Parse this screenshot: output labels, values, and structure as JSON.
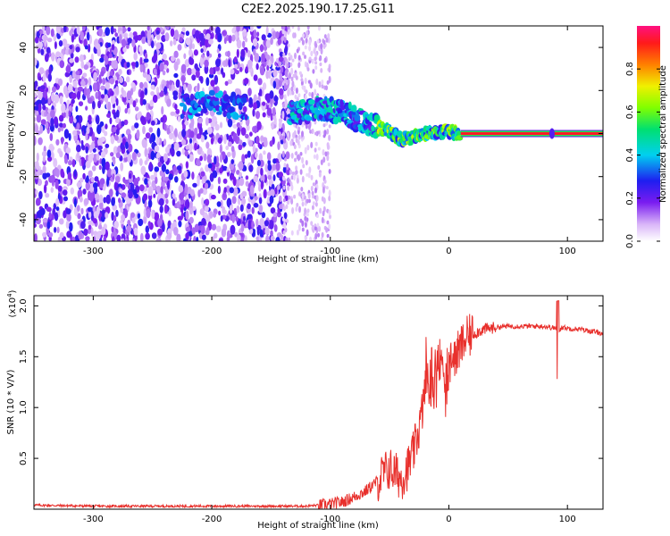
{
  "chart_data": [
    {
      "type": "heatmap",
      "title": "C2E2.2025.190.17.25.G11",
      "xlabel": "Height of straight line (km)",
      "ylabel": "Frequency (Hz)",
      "xlim": [
        -350,
        130
      ],
      "ylim": [
        -50,
        50
      ],
      "xticks": [
        -300,
        -200,
        -100,
        0,
        100
      ],
      "xtick_labels": [
        "-300",
        "-200",
        "-100",
        "0",
        "100"
      ],
      "yticks": [
        -40,
        -20,
        0,
        20,
        40
      ],
      "ytick_labels": [
        "-40",
        "-20",
        "0",
        "20",
        "40"
      ],
      "colorbar": {
        "label": "Normalized spectral amplitude",
        "range": [
          0,
          1
        ],
        "ticks": [
          0.0,
          0.2,
          0.4,
          0.6,
          0.8
        ],
        "tick_labels": [
          "0.0",
          "0.2",
          "0.4",
          "0.6",
          "0.8"
        ]
      },
      "regions": [
        {
          "x": [
            -350,
            -140
          ],
          "description": "noise spread across all frequencies, amplitude ~0.1-0.3"
        },
        {
          "x": [
            -140,
            10
          ],
          "description": "Doppler signal converging toward 0 Hz, amplitude up to ~0.6"
        },
        {
          "x": [
            10,
            130
          ],
          "description": "clean signal at 0 Hz, amplitude ~1.0"
        }
      ],
      "signal_track": [
        {
          "x": -220,
          "y": 13
        },
        {
          "x": -200,
          "y": 14
        },
        {
          "x": -180,
          "y": 13
        },
        {
          "x": -130,
          "y": 9
        },
        {
          "x": -110,
          "y": 12
        },
        {
          "x": -90,
          "y": 10
        },
        {
          "x": -70,
          "y": 5
        },
        {
          "x": -50,
          "y": 1
        },
        {
          "x": -40,
          "y": -3
        },
        {
          "x": -20,
          "y": 0
        },
        {
          "x": 0,
          "y": 1
        },
        {
          "x": 10,
          "y": 0
        }
      ]
    },
    {
      "type": "line",
      "xlabel": "Height of straight line (km)",
      "ylabel": "SNR (10 * V/V)",
      "multiplier_label": "(x10",
      "multiplier_exp": "4",
      "multiplier_close": ")",
      "xlim": [
        -350,
        130
      ],
      "ylim": [
        0.0,
        2.1
      ],
      "xticks": [
        -300,
        -200,
        -100,
        0,
        100
      ],
      "xtick_labels": [
        "-300",
        "-200",
        "-100",
        "0",
        "100"
      ],
      "yticks": [
        0.5,
        1.0,
        1.5,
        2.0
      ],
      "ytick_labels": [
        "0.5",
        "1.0",
        "1.5",
        "2.0"
      ],
      "line_color": "#e8302c",
      "series": [
        {
          "x": [
            -350,
            -300,
            -250,
            -200,
            -150,
            -120,
            -100,
            -90,
            -80,
            -70,
            -60,
            -55,
            -50,
            -45,
            -40,
            -35,
            -30,
            -25,
            -22,
            -20,
            -18,
            -15,
            -10,
            -5,
            0,
            5,
            10,
            15,
            20,
            25,
            30,
            35,
            40,
            50,
            60,
            70,
            80,
            90,
            92,
            95,
            100,
            110,
            120,
            130
          ],
          "y": [
            0.04,
            0.03,
            0.03,
            0.03,
            0.03,
            0.03,
            0.05,
            0.07,
            0.12,
            0.18,
            0.28,
            0.35,
            0.4,
            0.35,
            0.3,
            0.4,
            0.55,
            0.8,
            1.0,
            1.2,
            1.25,
            1.3,
            1.35,
            1.4,
            1.35,
            1.5,
            1.6,
            1.68,
            1.72,
            1.75,
            1.77,
            1.78,
            1.79,
            1.8,
            1.8,
            1.8,
            1.8,
            1.78,
            1.75,
            1.79,
            1.78,
            1.77,
            1.75,
            1.73
          ]
        }
      ]
    }
  ]
}
